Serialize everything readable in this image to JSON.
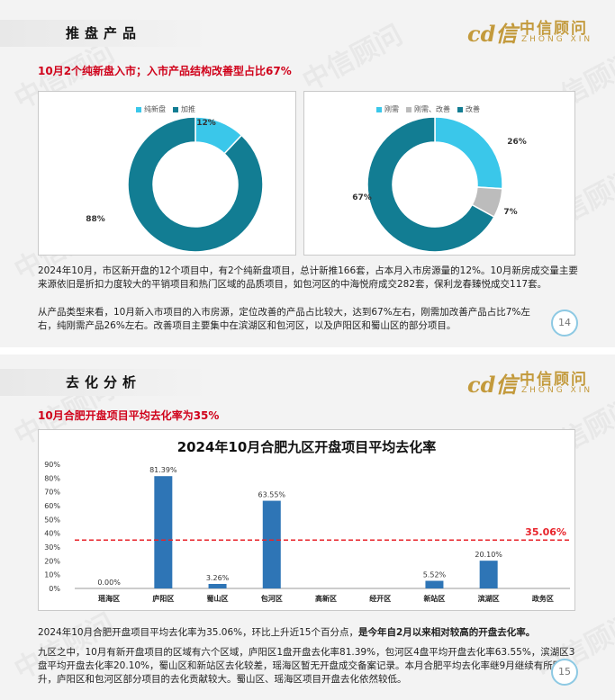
{
  "slide1": {
    "section_title": "推盘产品",
    "logo": {
      "mark": "cd信",
      "cn": "中信顾问",
      "en": "ZHONG XIN"
    },
    "subtitle": "10月2个纯新盘入市；入市产品结构改善型占比67%",
    "donut_left": {
      "legend": [
        "纯新盘",
        "加推"
      ],
      "segments": [
        {
          "label": "纯新盘",
          "value": 12,
          "display": "12%",
          "color": "#3ac7ea"
        },
        {
          "label": "加推",
          "value": 88,
          "display": "88%",
          "color": "#127d93"
        }
      ]
    },
    "donut_right": {
      "legend": [
        "刚需",
        "刚需、改善",
        "改善"
      ],
      "segments": [
        {
          "label": "刚需",
          "value": 26,
          "display": "26%",
          "color": "#3ac7ea"
        },
        {
          "label": "刚需、改善",
          "value": 7,
          "display": "7%",
          "color": "#bcbcbc"
        },
        {
          "label": "改善",
          "value": 67,
          "display": "67%",
          "color": "#127d93"
        }
      ]
    },
    "paragraphs": [
      "2024年10月，市区新开盘的12个项目中，有2个纯新盘项目，总计新推166套，占本月入市房源量的12%。10月新房成交量主要来源依旧是折扣力度较大的平销项目和热门区域的品质项目，如包河区的中海悦府成交282套，保利龙春臻悦成交117套。",
      "从产品类型来看，10月新入市项目的入市房源，定位改善的产品占比较大，达到67%左右，刚需加改善产品占比7%左右，纯刚需产品26%左右。改善项目主要集中在滨湖区和包河区，以及庐阳区和蜀山区的部分项目。"
    ],
    "page": "14"
  },
  "slide2": {
    "section_title": "去化分析",
    "logo": {
      "mark": "cd信",
      "cn": "中信顾问",
      "en": "ZHONG XIN"
    },
    "subtitle": "10月合肥开盘项目平均去化率为35%",
    "chart_data": {
      "type": "bar",
      "title": "2024年10月合肥九区开盘项目平均去化率",
      "categories": [
        "瑶海区",
        "庐阳区",
        "蜀山区",
        "包河区",
        "高新区",
        "经开区",
        "新站区",
        "滨湖区",
        "政务区"
      ],
      "values": [
        0.0,
        81.39,
        3.26,
        63.55,
        null,
        null,
        5.52,
        20.1,
        null
      ],
      "data_labels": [
        "0.00%",
        "81.39%",
        "3.26%",
        "63.55%",
        "",
        "",
        "5.52%",
        "20.10%",
        ""
      ],
      "yticks": [
        "0%",
        "10%",
        "20%",
        "30%",
        "40%",
        "50%",
        "60%",
        "70%",
        "80%",
        "90%"
      ],
      "ylim": [
        0,
        90
      ],
      "reference_line": {
        "value": 35.06,
        "label": "35.06%",
        "color": "#e8232a"
      },
      "bar_color": "#2e75b6"
    },
    "paragraph1_normal": "2024年10月合肥开盘项目平均去化率为35.06%，环比上升近15个百分点，",
    "paragraph1_bold": "是今年自2月以来相对较高的开盘去化率。",
    "paragraph2": "九区之中，10月有新开盘项目的区域有六个区域，庐阳区1盘开盘去化率81.39%，包河区4盘平均开盘去化率63.55%，滨湖区3盘平均开盘去化率20.10%，蜀山区和新站区去化较差，瑶海区暂无开盘成交备案记录。本月合肥平均去化率继9月继续有所回升，庐阳区和包河区部分项目的去化贡献较大。蜀山区、瑶海区项目开盘去化依然较低。",
    "page": "15"
  },
  "watermark": "中信顾问"
}
